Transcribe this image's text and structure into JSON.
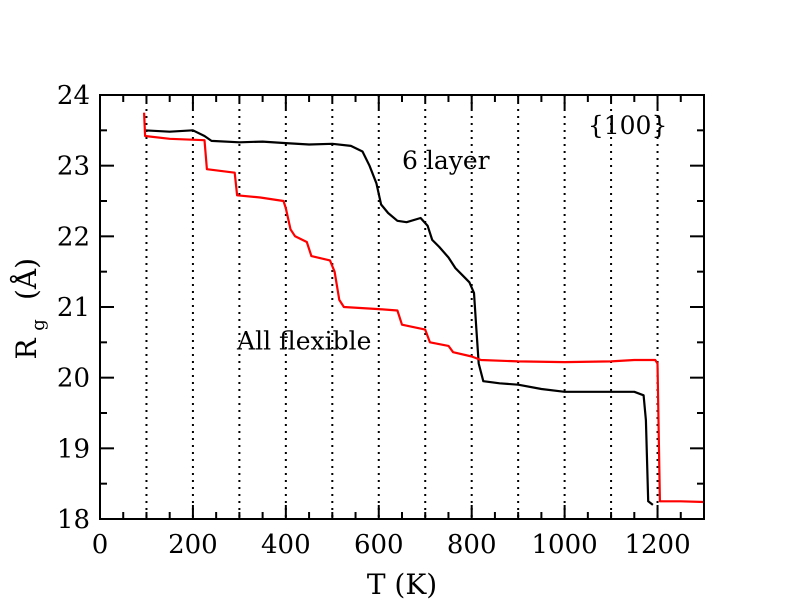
{
  "chart_data": {
    "type": "line",
    "xlabel": "T (K)",
    "ylabel_main": "R",
    "ylabel_sub": "g",
    "ylabel_unit": "(Å)",
    "xlim": [
      0,
      1300
    ],
    "ylim": [
      18,
      24
    ],
    "xticks": [
      0,
      200,
      400,
      600,
      800,
      1000,
      1200
    ],
    "yticks": [
      18,
      19,
      20,
      21,
      22,
      23,
      24
    ],
    "x_minor_step": 50,
    "y_minor_step": 0.5,
    "grid": "vertical dotted lines at 100 K intervals",
    "vlines": [
      100,
      200,
      300,
      400,
      500,
      600,
      700,
      800,
      900,
      1000,
      1100,
      1200
    ],
    "annotations": [
      {
        "text": "{100}",
        "x": 1050,
        "y": 23.45
      },
      {
        "text": "6 layer",
        "x": 650,
        "y": 22.95
      },
      {
        "text": "All flexible",
        "x": 295,
        "y": 20.4
      }
    ],
    "series": [
      {
        "color": "#000000",
        "points": [
          [
            95,
            23.5
          ],
          [
            150,
            23.48
          ],
          [
            200,
            23.5
          ],
          [
            225,
            23.42
          ],
          [
            240,
            23.35
          ],
          [
            300,
            23.33
          ],
          [
            350,
            23.34
          ],
          [
            400,
            23.32
          ],
          [
            450,
            23.3
          ],
          [
            500,
            23.31
          ],
          [
            540,
            23.28
          ],
          [
            565,
            23.2
          ],
          [
            580,
            23.0
          ],
          [
            595,
            22.75
          ],
          [
            605,
            22.45
          ],
          [
            620,
            22.33
          ],
          [
            640,
            22.22
          ],
          [
            660,
            22.2
          ],
          [
            690,
            22.26
          ],
          [
            705,
            22.15
          ],
          [
            715,
            21.95
          ],
          [
            730,
            21.85
          ],
          [
            750,
            21.7
          ],
          [
            765,
            21.55
          ],
          [
            780,
            21.45
          ],
          [
            795,
            21.35
          ],
          [
            805,
            21.2
          ],
          [
            810,
            20.7
          ],
          [
            815,
            20.2
          ],
          [
            825,
            19.95
          ],
          [
            860,
            19.92
          ],
          [
            900,
            19.9
          ],
          [
            950,
            19.84
          ],
          [
            1000,
            19.8
          ],
          [
            1050,
            19.8
          ],
          [
            1100,
            19.8
          ],
          [
            1150,
            19.8
          ],
          [
            1170,
            19.75
          ],
          [
            1175,
            19.4
          ],
          [
            1180,
            18.25
          ],
          [
            1190,
            18.2
          ]
        ]
      },
      {
        "color": "#ff0000",
        "points": [
          [
            95,
            23.75
          ],
          [
            97,
            23.42
          ],
          [
            150,
            23.38
          ],
          [
            225,
            23.36
          ],
          [
            230,
            22.95
          ],
          [
            290,
            22.9
          ],
          [
            295,
            22.58
          ],
          [
            345,
            22.55
          ],
          [
            395,
            22.5
          ],
          [
            400,
            22.4
          ],
          [
            410,
            22.1
          ],
          [
            420,
            22.0
          ],
          [
            445,
            21.92
          ],
          [
            455,
            21.72
          ],
          [
            495,
            21.66
          ],
          [
            505,
            21.5
          ],
          [
            515,
            21.1
          ],
          [
            525,
            21.0
          ],
          [
            600,
            20.97
          ],
          [
            640,
            20.95
          ],
          [
            650,
            20.75
          ],
          [
            700,
            20.68
          ],
          [
            710,
            20.5
          ],
          [
            750,
            20.45
          ],
          [
            760,
            20.36
          ],
          [
            800,
            20.3
          ],
          [
            820,
            20.25
          ],
          [
            900,
            20.23
          ],
          [
            1000,
            20.22
          ],
          [
            1100,
            20.23
          ],
          [
            1150,
            20.25
          ],
          [
            1195,
            20.25
          ],
          [
            1200,
            20.2
          ],
          [
            1205,
            18.25
          ],
          [
            1250,
            18.25
          ],
          [
            1300,
            18.24
          ]
        ]
      }
    ]
  }
}
